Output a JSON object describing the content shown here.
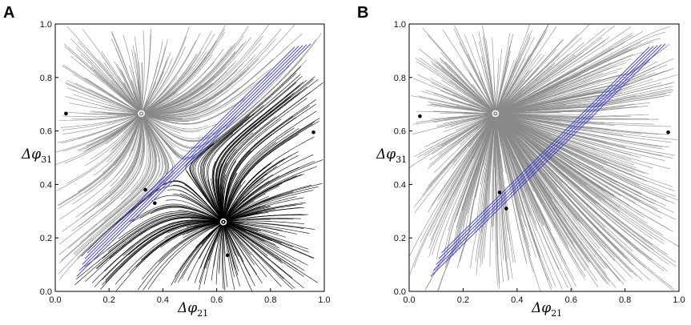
{
  "chart_data": [
    {
      "panel": "A",
      "type": "streamplot",
      "xlabel": "Δφ",
      "xlabel_sub": "21",
      "ylabel": "Δφ",
      "ylabel_sub": "31",
      "xlim": [
        0.0,
        1.0
      ],
      "ylim": [
        0.0,
        1.0
      ],
      "xticks": [
        "0.0",
        "0.2",
        "0.4",
        "0.6",
        "0.8",
        "1.0"
      ],
      "yticks": [
        "0.0",
        "0.2",
        "0.4",
        "0.6",
        "0.8",
        "1.0"
      ],
      "colors": {
        "flow": "#8a8a8a",
        "basin": "#000000",
        "diagonal": "#3333dd",
        "stable_marker": "#ffffff"
      },
      "stable_points": [
        {
          "x": 0.32,
          "y": 0.665
        },
        {
          "x": 0.625,
          "y": 0.26
        }
      ],
      "saddle_points": [
        {
          "x": 0.04,
          "y": 0.665
        },
        {
          "x": 0.335,
          "y": 0.38
        },
        {
          "x": 0.37,
          "y": 0.33
        },
        {
          "x": 0.64,
          "y": 0.135
        },
        {
          "x": 0.96,
          "y": 0.595
        }
      ],
      "highlighted_basin_attractor": {
        "x": 0.625,
        "y": 0.26
      }
    },
    {
      "panel": "B",
      "type": "streamplot",
      "xlabel": "Δφ",
      "xlabel_sub": "21",
      "ylabel": "Δφ",
      "ylabel_sub": "31",
      "xlim": [
        0.0,
        1.0
      ],
      "ylim": [
        0.0,
        1.0
      ],
      "xticks": [
        "0.0",
        "0.2",
        "0.4",
        "0.6",
        "0.8",
        "1.0"
      ],
      "yticks": [
        "0.0",
        "0.2",
        "0.4",
        "0.6",
        "0.8",
        "1.0"
      ],
      "colors": {
        "flow": "#8a8a8a",
        "diagonal": "#3333dd",
        "stable_marker": "#ffffff"
      },
      "stable_points": [
        {
          "x": 0.32,
          "y": 0.665
        }
      ],
      "saddle_points": [
        {
          "x": 0.04,
          "y": 0.655
        },
        {
          "x": 0.335,
          "y": 0.37
        },
        {
          "x": 0.36,
          "y": 0.31
        },
        {
          "x": 0.96,
          "y": 0.595
        }
      ],
      "highlighted_basin_attractor": null
    }
  ]
}
